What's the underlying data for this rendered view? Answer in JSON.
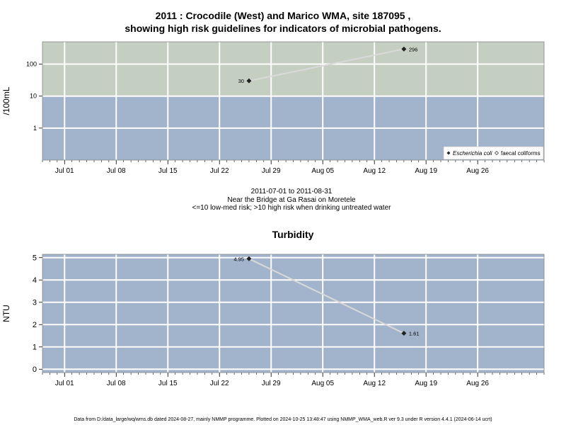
{
  "header": {
    "title_line1": "2011 : Crocodile (West) and Marico WMA, site 187095 ,",
    "title_line2": "showing high risk guidelines for indicators of microbial pathogens."
  },
  "caption": {
    "range": "2011-07-01 to 2011-08-31",
    "location": "Near the Bridge at Ga Rasai on Moretele",
    "risk_note": "<=10 low-med risk; >10 high risk when drinking untreated water"
  },
  "footer": {
    "note": "Data from D:/data_large/wq/wms.db dated 2024-08-27, mainly NMMP programme. Plotted on 2024-10-25 13:48:47 using NMMP_WMA_web.R ver 9.3 under R version 4.4.1 (2024-06-14 ucrt)"
  },
  "colors": {
    "high_risk_band": "#c4cfc2",
    "low_risk_band": "#a2b3cc",
    "grid": "#ffffff",
    "line": "#d9d9d9",
    "point": "#222222"
  },
  "chart_data": [
    {
      "type": "line",
      "title": "",
      "ylabel": "/100mL",
      "yscale": "log",
      "ylim": [
        0.1,
        500
      ],
      "yticks": [
        1,
        10,
        100
      ],
      "ytick_labels": [
        "1",
        "10",
        "100"
      ],
      "x_date_range": [
        "2011-06-28",
        "2011-09-04"
      ],
      "xticks": [
        "2011-07-01",
        "2011-07-08",
        "2011-07-15",
        "2011-07-22",
        "2011-07-29",
        "2011-08-05",
        "2011-08-12",
        "2011-08-19",
        "2011-08-26"
      ],
      "xtick_labels": [
        "Jul 01",
        "Jul 08",
        "Jul 15",
        "Jul 22",
        "Jul 29",
        "Aug 05",
        "Aug 12",
        "Aug 19",
        "Aug 26"
      ],
      "threshold": 10,
      "bands": [
        {
          "from": 10,
          "to": 500,
          "color": "#c4cfc2"
        },
        {
          "from": 0.1,
          "to": 10,
          "color": "#a2b3cc"
        }
      ],
      "legend": {
        "position": "bottom-right",
        "entries": [
          {
            "label": "Escherichia coli",
            "marker": "filled-diamond"
          },
          {
            "label": "faecal coliforms",
            "marker": "open-diamond"
          }
        ]
      },
      "series": [
        {
          "name": "Escherichia coli",
          "points": [
            {
              "x": "2011-07-26",
              "y": 30,
              "label": "30"
            },
            {
              "x": "2011-08-16",
              "y": 296,
              "label": "296"
            }
          ]
        }
      ]
    },
    {
      "type": "line",
      "title": "Turbidity",
      "ylabel": "NTU",
      "yscale": "linear",
      "ylim": [
        -0.15,
        5.15
      ],
      "yticks": [
        0,
        1,
        2,
        3,
        4,
        5
      ],
      "ytick_labels": [
        "0",
        "1",
        "2",
        "3",
        "4",
        "5"
      ],
      "x_date_range": [
        "2011-06-28",
        "2011-09-04"
      ],
      "xticks": [
        "2011-07-01",
        "2011-07-08",
        "2011-07-15",
        "2011-07-22",
        "2011-07-29",
        "2011-08-05",
        "2011-08-12",
        "2011-08-19",
        "2011-08-26"
      ],
      "xtick_labels": [
        "Jul 01",
        "Jul 08",
        "Jul 15",
        "Jul 22",
        "Jul 29",
        "Aug 05",
        "Aug 12",
        "Aug 19",
        "Aug 26"
      ],
      "series": [
        {
          "name": "Turbidity",
          "points": [
            {
              "x": "2011-07-26",
              "y": 4.95,
              "label": "4.95"
            },
            {
              "x": "2011-08-16",
              "y": 1.61,
              "label": "1.61"
            }
          ]
        }
      ]
    }
  ]
}
